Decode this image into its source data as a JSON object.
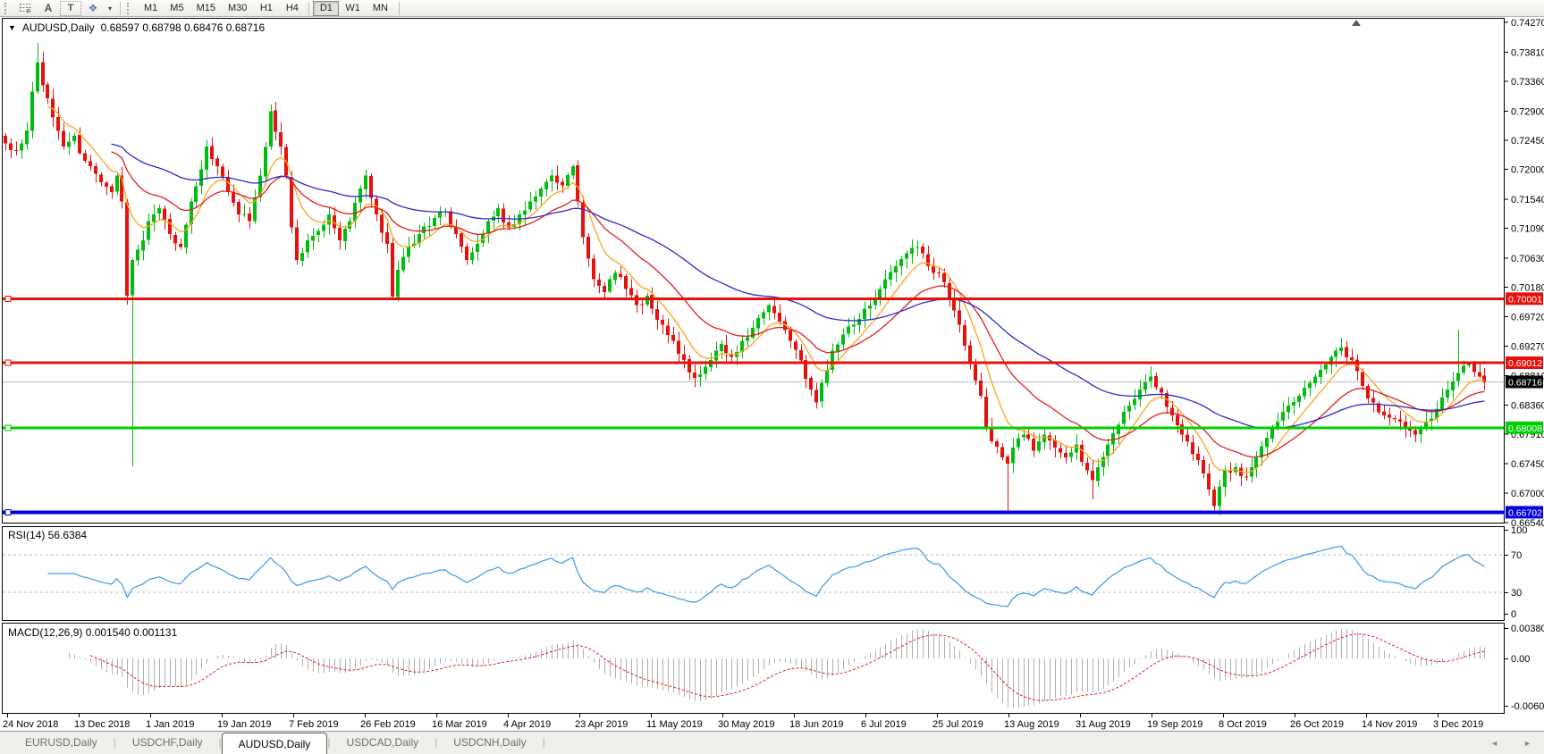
{
  "toolbar": {
    "tool_labels": {
      "text_label": "A",
      "text_box": "T",
      "shapes": "❖",
      "caret": "▾"
    },
    "timeframes": [
      {
        "label": "M1"
      },
      {
        "label": "M5"
      },
      {
        "label": "M15"
      },
      {
        "label": "M30"
      },
      {
        "label": "H1"
      },
      {
        "label": "H4"
      },
      {
        "label": "D1",
        "active": true,
        "group_start": true
      },
      {
        "label": "W1"
      },
      {
        "label": "MN"
      }
    ]
  },
  "chart": {
    "symbol_title": "AUDUSD,Daily",
    "ohlc_text": "0.68597 0.68798 0.68476 0.68716",
    "hlines": [
      {
        "price": 0.70001,
        "label": "0.70001",
        "color": "#e8100c",
        "width": 3
      },
      {
        "price": 0.69012,
        "label": "0.69012",
        "color": "#e8100c",
        "width": 3
      },
      {
        "price": 0.68008,
        "label": "0.68008",
        "color": "#00cf00",
        "width": 3
      },
      {
        "price": 0.66702,
        "label": "0.66702",
        "color": "#0000dc",
        "width": 4
      }
    ],
    "current_price": {
      "value": 0.68716,
      "label": "0.68716",
      "line_color": "#c0c0c0",
      "tag_bg": "#000000"
    },
    "colors": {
      "up": "#00be10",
      "down": "#e8100c",
      "ma_fast": "#ffa21f",
      "ma_mid": "#e02020",
      "ma_slow": "#2b2bc8",
      "rsi": "#3e96e6",
      "rsi_level": "#bbbbbb",
      "macd_hist": "#b0b0b0",
      "macd_signal": "#e02020",
      "axis_text": "#000000",
      "panel_border": "#000000"
    }
  },
  "rsi": {
    "label": "RSI(14) 56.6384",
    "axis_labels": [
      "100",
      "70",
      "30",
      "0"
    ],
    "levels_dashed": [
      70,
      30
    ]
  },
  "macd": {
    "label": "MACD(12,26,9) 0.001540 0.001131",
    "axis_labels": [
      "0.003804",
      "0.00",
      "-0.006087"
    ]
  },
  "tabs": [
    {
      "label": "EURUSD,Daily"
    },
    {
      "label": "USDCHF,Daily"
    },
    {
      "label": "AUDUSD,Daily",
      "active": true
    },
    {
      "label": "USDCAD,Daily"
    },
    {
      "label": "USDCNH,Daily"
    }
  ],
  "tab_scroll": {
    "left": "◄",
    "right": "►"
  },
  "chart_data": {
    "type": "candlestick-ohlc",
    "symbol": "AUDUSD",
    "timeframe": "Daily",
    "bars": 280,
    "current_ohlc": {
      "open": 0.68597,
      "high": 0.68798,
      "low": 0.68476,
      "close": 0.68716
    },
    "y_axis": {
      "min": 0.66542,
      "max": 0.74325
    },
    "y_ticks": [
      "0.74270",
      "0.73810",
      "0.73360",
      "0.72900",
      "0.72450",
      "0.72000",
      "0.71540",
      "0.71090",
      "0.70630",
      "0.70180",
      "0.69720",
      "0.69270",
      "0.68810",
      "0.68360",
      "0.67910",
      "0.67450",
      "0.67000",
      "0.66540"
    ],
    "x_labels": [
      "24 Nov 2018",
      "13 Dec 2018",
      "1 Jan 2019",
      "19 Jan 2019",
      "7 Feb 2019",
      "26 Feb 2019",
      "16 Mar 2019",
      "4 Apr 2019",
      "23 Apr 2019",
      "11 May 2019",
      "30 May 2019",
      "18 Jun 2019",
      "6 Jul 2019",
      "25 Jul 2019",
      "13 Aug 2019",
      "31 Aug 2019",
      "19 Sep 2019",
      "8 Oct 2019",
      "26 Oct 2019",
      "14 Nov 2019",
      "3 Dec 2019"
    ],
    "horizontal_levels": [
      0.70001,
      0.69012,
      0.68008,
      0.66702
    ],
    "moving_averages": [
      {
        "period": 8,
        "color": "#ffa21f"
      },
      {
        "period": 21,
        "color": "#e02020"
      },
      {
        "period": 55,
        "color": "#2b2bc8"
      }
    ],
    "indicators": [
      {
        "name": "RSI",
        "params": [
          14
        ],
        "current": 56.6384,
        "levels": [
          30,
          70
        ],
        "range": [
          0,
          100
        ]
      },
      {
        "name": "MACD",
        "params": [
          12,
          26,
          9
        ],
        "current": [
          0.00154,
          0.001131
        ],
        "axis_range": [
          -0.006087,
          0.003804
        ]
      }
    ],
    "close_anchors": [
      [
        0,
        0.724
      ],
      [
        2,
        0.7228
      ],
      [
        4,
        0.726
      ],
      [
        5,
        0.732
      ],
      [
        6,
        0.7365
      ],
      [
        7,
        0.733
      ],
      [
        9,
        0.728
      ],
      [
        11,
        0.7235
      ],
      [
        13,
        0.7252
      ],
      [
        14,
        0.7225
      ],
      [
        16,
        0.7205
      ],
      [
        18,
        0.718
      ],
      [
        20,
        0.7165
      ],
      [
        21,
        0.719
      ],
      [
        22,
        0.715
      ],
      [
        23,
        0.7005
      ],
      [
        24,
        0.706
      ],
      [
        26,
        0.709
      ],
      [
        27,
        0.712
      ],
      [
        29,
        0.714
      ],
      [
        31,
        0.71
      ],
      [
        33,
        0.708
      ],
      [
        35,
        0.715
      ],
      [
        37,
        0.72
      ],
      [
        38,
        0.7235
      ],
      [
        40,
        0.7205
      ],
      [
        42,
        0.7165
      ],
      [
        44,
        0.713
      ],
      [
        46,
        0.712
      ],
      [
        48,
        0.719
      ],
      [
        50,
        0.729
      ],
      [
        52,
        0.7235
      ],
      [
        53,
        0.719
      ],
      [
        54,
        0.711
      ],
      [
        55,
        0.706
      ],
      [
        57,
        0.709
      ],
      [
        59,
        0.7105
      ],
      [
        61,
        0.713
      ],
      [
        63,
        0.709
      ],
      [
        65,
        0.712
      ],
      [
        67,
        0.717
      ],
      [
        68,
        0.719
      ],
      [
        70,
        0.713
      ],
      [
        72,
        0.7085
      ],
      [
        73,
        0.7003
      ],
      [
        74,
        0.7045
      ],
      [
        76,
        0.708
      ],
      [
        78,
        0.71
      ],
      [
        81,
        0.7125
      ],
      [
        83,
        0.7135
      ],
      [
        85,
        0.71
      ],
      [
        87,
        0.706
      ],
      [
        89,
        0.7085
      ],
      [
        91,
        0.712
      ],
      [
        93,
        0.714
      ],
      [
        95,
        0.711
      ],
      [
        97,
        0.713
      ],
      [
        99,
        0.715
      ],
      [
        101,
        0.717
      ],
      [
        103,
        0.719
      ],
      [
        105,
        0.7175
      ],
      [
        107,
        0.7205
      ],
      [
        108,
        0.715
      ],
      [
        109,
        0.7095
      ],
      [
        111,
        0.703
      ],
      [
        113,
        0.701
      ],
      [
        115,
        0.704
      ],
      [
        117,
        0.7015
      ],
      [
        119,
        0.699
      ],
      [
        121,
        0.7005
      ],
      [
        122,
        0.6985
      ],
      [
        124,
        0.696
      ],
      [
        126,
        0.6935
      ],
      [
        128,
        0.6905
      ],
      [
        130,
        0.6878
      ],
      [
        132,
        0.6895
      ],
      [
        134,
        0.692
      ],
      [
        135,
        0.693
      ],
      [
        137,
        0.691
      ],
      [
        139,
        0.6935
      ],
      [
        141,
        0.6955
      ],
      [
        144,
        0.699
      ],
      [
        146,
        0.6965
      ],
      [
        148,
        0.6935
      ],
      [
        150,
        0.6905
      ],
      [
        152,
        0.686
      ],
      [
        153,
        0.684
      ],
      [
        154,
        0.687
      ],
      [
        156,
        0.692
      ],
      [
        158,
        0.6945
      ],
      [
        160,
        0.696
      ],
      [
        162,
        0.6985
      ],
      [
        164,
        0.7
      ],
      [
        166,
        0.703
      ],
      [
        168,
        0.705
      ],
      [
        170,
        0.707
      ],
      [
        172,
        0.708
      ],
      [
        174,
        0.705
      ],
      [
        176,
        0.704
      ],
      [
        178,
        0.7
      ],
      [
        180,
        0.696
      ],
      [
        182,
        0.69
      ],
      [
        184,
        0.685
      ],
      [
        185,
        0.68
      ],
      [
        186,
        0.678
      ],
      [
        188,
        0.6755
      ],
      [
        189,
        0.6745
      ],
      [
        190,
        0.677
      ],
      [
        192,
        0.679
      ],
      [
        194,
        0.6765
      ],
      [
        196,
        0.679
      ],
      [
        198,
        0.677
      ],
      [
        200,
        0.6755
      ],
      [
        202,
        0.6775
      ],
      [
        204,
        0.6735
      ],
      [
        205,
        0.672
      ],
      [
        206,
        0.674
      ],
      [
        208,
        0.6775
      ],
      [
        210,
        0.6805
      ],
      [
        212,
        0.6835
      ],
      [
        214,
        0.686
      ],
      [
        216,
        0.688
      ],
      [
        218,
        0.6855
      ],
      [
        220,
        0.682
      ],
      [
        222,
        0.679
      ],
      [
        224,
        0.676
      ],
      [
        226,
        0.673
      ],
      [
        227,
        0.6705
      ],
      [
        228,
        0.668
      ],
      [
        229,
        0.671
      ],
      [
        230,
        0.6735
      ],
      [
        232,
        0.674
      ],
      [
        234,
        0.6725
      ],
      [
        236,
        0.6755
      ],
      [
        238,
        0.6785
      ],
      [
        240,
        0.681
      ],
      [
        242,
        0.6835
      ],
      [
        244,
        0.685
      ],
      [
        246,
        0.687
      ],
      [
        248,
        0.689
      ],
      [
        250,
        0.691
      ],
      [
        252,
        0.6925
      ],
      [
        254,
        0.6905
      ],
      [
        256,
        0.6865
      ],
      [
        258,
        0.684
      ],
      [
        260,
        0.682
      ],
      [
        262,
        0.6815
      ],
      [
        264,
        0.68
      ],
      [
        266,
        0.679
      ],
      [
        268,
        0.681
      ],
      [
        270,
        0.683
      ],
      [
        272,
        0.686
      ],
      [
        274,
        0.6885
      ],
      [
        276,
        0.69
      ],
      [
        278,
        0.688
      ],
      [
        279,
        0.68716
      ]
    ],
    "event_wicks": [
      {
        "bar": 6,
        "high": 0.7395
      },
      {
        "bar": 24,
        "low": 0.6741
      },
      {
        "bar": 50,
        "high": 0.73
      },
      {
        "bar": 107,
        "high": 0.7207
      },
      {
        "bar": 172,
        "high": 0.709
      },
      {
        "bar": 189,
        "low": 0.6672
      },
      {
        "bar": 205,
        "low": 0.669
      },
      {
        "bar": 216,
        "high": 0.6896
      },
      {
        "bar": 228,
        "low": 0.6671
      },
      {
        "bar": 274,
        "high": 0.6952
      },
      {
        "bar": 276,
        "high": 0.6902
      }
    ]
  }
}
